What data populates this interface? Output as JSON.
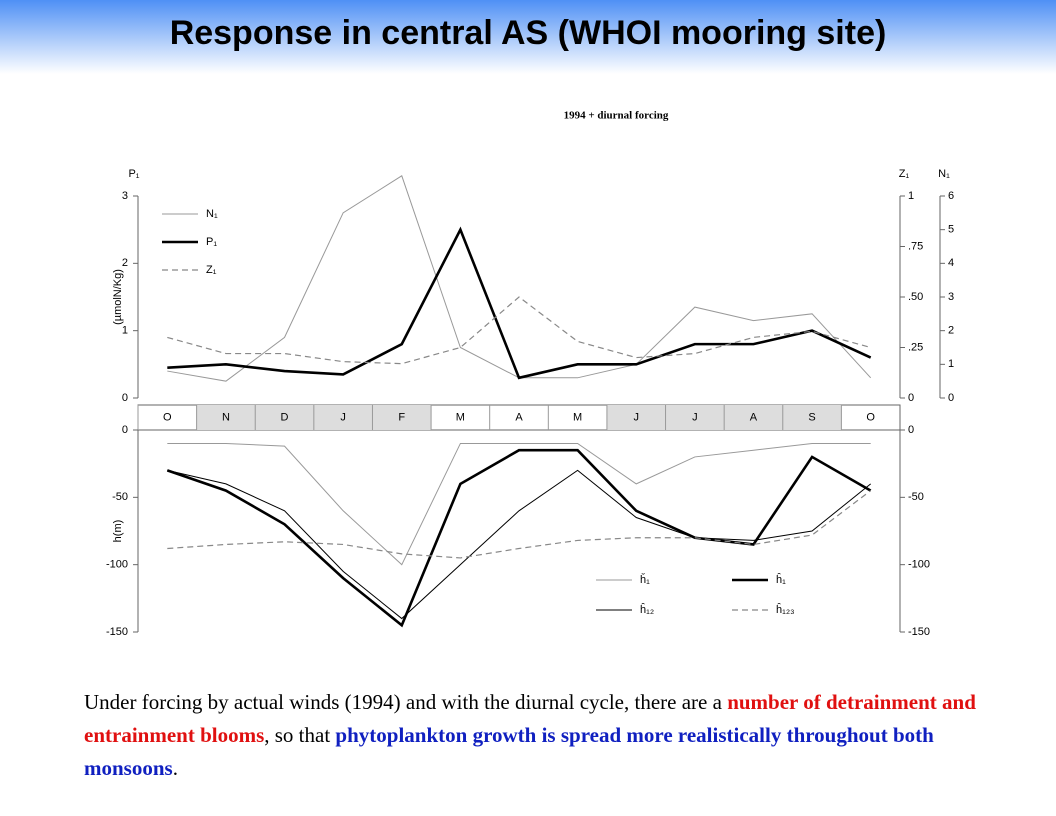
{
  "slide": {
    "title": "Response in central AS (WHOI mooring site)",
    "caption": [
      {
        "text": "Under forcing by actual winds (1994) and with the diurnal cycle, there are a ",
        "color": "#000000"
      },
      {
        "text": "number of detrainment and entrainment blooms",
        "color": "#e01010"
      },
      {
        "text": ", so that ",
        "color": "#000000"
      },
      {
        "text": "phytoplankton growth is spread more realistically throughout both monsoons",
        "color": "#1020c0"
      },
      {
        "text": ".",
        "color": "#000000"
      }
    ]
  },
  "chart_data": [
    {
      "type": "line",
      "title": "1994 + diurnal forcing",
      "categories": [
        "O",
        "N",
        "D",
        "J",
        "F",
        "M",
        "A",
        "M",
        "J",
        "J",
        "A",
        "S",
        "O"
      ],
      "shaded": [
        "N",
        "D",
        "J",
        "F",
        "J",
        "J",
        "A",
        "S"
      ],
      "ylabel": "(µmolN/Kg)",
      "y_title": "P₁",
      "y2_title": "Z₁",
      "y3_title": "N₁",
      "ylim": [
        0,
        3
      ],
      "yticks": [
        0,
        1,
        2,
        3
      ],
      "y2lim": [
        0,
        1
      ],
      "y2ticks": [
        0,
        {
          "value": 0.25,
          "label": ".25"
        },
        {
          "value": 0.5,
          "label": ".50"
        },
        {
          "value": 0.75,
          "label": ".75"
        },
        1
      ],
      "y3lim": [
        0,
        6
      ],
      "y3ticks": [
        0,
        1,
        2,
        3,
        4,
        5,
        6
      ],
      "legend": "upper left",
      "series": [
        {
          "name": "N₁",
          "color": "#999999",
          "style": "thin",
          "axis": "y3",
          "values": [
            0.8,
            0.5,
            1.8,
            5.5,
            6.6,
            1.5,
            0.6,
            0.6,
            1.0,
            2.7,
            2.3,
            2.5,
            0.6
          ]
        },
        {
          "name": "P₁",
          "color": "#000000",
          "style": "thick",
          "values": [
            0.45,
            0.5,
            0.4,
            0.35,
            0.8,
            2.5,
            0.3,
            0.5,
            0.5,
            0.8,
            0.8,
            1.0,
            0.6
          ]
        },
        {
          "name": "Z₁",
          "color": "#888888",
          "style": "dashed",
          "axis": "y2",
          "values": [
            0.3,
            0.22,
            0.22,
            0.18,
            0.17,
            0.25,
            0.5,
            0.28,
            0.2,
            0.22,
            0.3,
            0.33,
            0.25
          ]
        }
      ]
    },
    {
      "type": "line",
      "categories": [
        "O",
        "N",
        "D",
        "J",
        "F",
        "M",
        "A",
        "M",
        "J",
        "J",
        "A",
        "S",
        "O"
      ],
      "ylabel": "h(m)",
      "ylim": [
        -150,
        0
      ],
      "yticks": [
        0,
        -50,
        -100,
        -150
      ],
      "y2lim": [
        -150,
        0
      ],
      "y2ticks": [
        0,
        -50,
        -100,
        -150
      ],
      "legend": "lower right",
      "series": [
        {
          "name": "ȟ₁",
          "color": "#999999",
          "style": "thin",
          "values": [
            -10,
            -10,
            -12,
            -60,
            -100,
            -10,
            -10,
            -10,
            -40,
            -20,
            -15,
            -10,
            -10
          ]
        },
        {
          "name": "ĥ₁₂",
          "color": "#000000",
          "style": "thin",
          "values": [
            -30,
            -40,
            -60,
            -105,
            -140,
            -100,
            -60,
            -30,
            -65,
            -80,
            -82,
            -75,
            -40
          ]
        },
        {
          "name": "ĥ₁",
          "color": "#000000",
          "style": "thick",
          "values": [
            -30,
            -45,
            -70,
            -110,
            -145,
            -40,
            -15,
            -15,
            -60,
            -80,
            -85,
            -20,
            -45
          ]
        },
        {
          "name": "ĥ₁₂₃",
          "color": "#888888",
          "style": "dashed",
          "values": [
            -88,
            -85,
            -83,
            -85,
            -92,
            -95,
            -88,
            -82,
            -80,
            -80,
            -85,
            -78,
            -45
          ]
        }
      ]
    }
  ]
}
